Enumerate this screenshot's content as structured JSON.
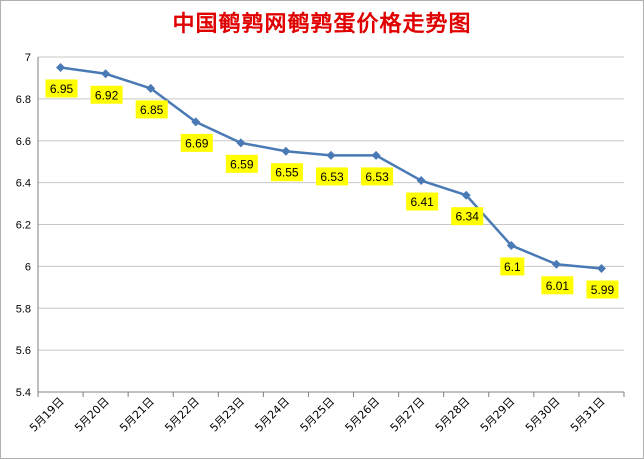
{
  "chart_data": {
    "type": "line",
    "title": "中国鹌鹑网鹌鹑蛋价格走势图",
    "categories": [
      "5月19日",
      "5月20日",
      "5月21日",
      "5月22日",
      "5月23日",
      "5月24日",
      "5月25日",
      "5月26日",
      "5月27日",
      "5月28日",
      "5月29日",
      "5月30日",
      "5月31日"
    ],
    "series": [
      {
        "values": [
          6.95,
          6.92,
          6.85,
          6.69,
          6.59,
          6.55,
          6.53,
          6.53,
          6.41,
          6.34,
          6.1,
          6.01,
          5.99
        ]
      }
    ],
    "data_labels": [
      "6.95",
      "6.92",
      "6.85",
      "6.69",
      "6.59",
      "6.55",
      "6.53",
      "6.53",
      "6.41",
      "6.34",
      "6.1",
      "6.01",
      "5.99"
    ],
    "y_ticks": [
      "5.4",
      "5.6",
      "5.8",
      "6",
      "6.2",
      "6.4",
      "6.6",
      "6.8",
      "7"
    ],
    "ylim": [
      5.4,
      7
    ],
    "grid": true,
    "legend": "none",
    "colors": {
      "title": "#e00000",
      "line": "#4a7ab5",
      "marker": "#4a7ab5",
      "label_bg": "#ffff00",
      "grid": "#c8c8c8"
    }
  }
}
